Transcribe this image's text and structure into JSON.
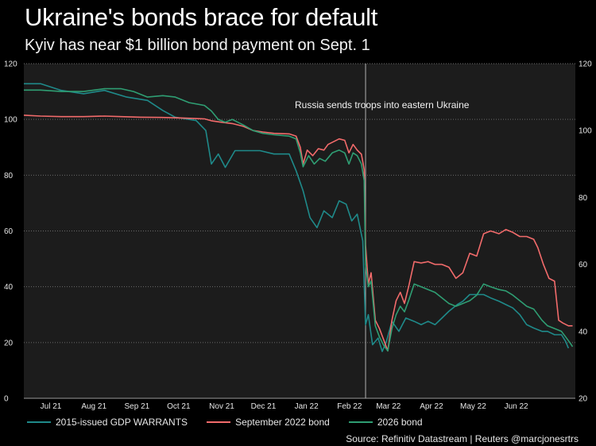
{
  "chart_data": {
    "type": "line",
    "title": "Ukraine's bonds brace for default",
    "subtitle": "Kyiv has near $1 billion bond payment on Sept. 1",
    "source": "Source: Refinitiv Datastream | Reuters @marcjonesrtrs",
    "annotation": "Russia sends troops into eastern Ukraine",
    "annotation_date": "2022-02-24",
    "x_range": [
      "2021-06-23",
      "2022-07-25"
    ],
    "x_ticks": [
      {
        "label": "Jul 21",
        "date": "2021-07-01"
      },
      {
        "label": "Aug 21",
        "date": "2021-08-01"
      },
      {
        "label": "Sep 21",
        "date": "2021-09-01"
      },
      {
        "label": "Oct 21",
        "date": "2021-10-01"
      },
      {
        "label": "Nov 21",
        "date": "2021-11-01"
      },
      {
        "label": "Dec 21",
        "date": "2021-12-01"
      },
      {
        "label": "Jan 22",
        "date": "2022-01-01"
      },
      {
        "label": "Feb 22",
        "date": "2022-02-01"
      },
      {
        "label": "Mar 22",
        "date": "2022-03-01"
      },
      {
        "label": "Apr 22",
        "date": "2022-04-01"
      },
      {
        "label": "May 22",
        "date": "2022-05-01"
      },
      {
        "label": "Jun 22",
        "date": "2022-06-01"
      }
    ],
    "y_left": {
      "range": [
        0,
        120
      ],
      "ticks": [
        0,
        20,
        40,
        60,
        80,
        100,
        120
      ]
    },
    "y_right": {
      "range": [
        20,
        120
      ],
      "ticks": [
        20,
        40,
        60,
        80,
        100,
        120
      ]
    },
    "grid": "horizontal dotted",
    "legend_position": "bottom",
    "series": [
      {
        "name": "2015-issued GDP WARRANTS",
        "axis": "right",
        "color": "#1f8a8a",
        "points": [
          [
            "2021-06-23",
            114
          ],
          [
            "2021-07-05",
            114
          ],
          [
            "2021-07-20",
            112
          ],
          [
            "2021-08-05",
            111
          ],
          [
            "2021-08-20",
            112
          ],
          [
            "2021-09-05",
            110
          ],
          [
            "2021-09-20",
            109
          ],
          [
            "2021-10-01",
            106
          ],
          [
            "2021-10-10",
            104
          ],
          [
            "2021-10-25",
            103
          ],
          [
            "2021-11-01",
            100
          ],
          [
            "2021-11-05",
            90
          ],
          [
            "2021-11-10",
            93
          ],
          [
            "2021-11-15",
            89
          ],
          [
            "2021-11-22",
            94
          ],
          [
            "2021-12-01",
            94
          ],
          [
            "2021-12-10",
            94
          ],
          [
            "2021-12-20",
            93
          ],
          [
            "2021-12-31",
            93
          ],
          [
            "2022-01-05",
            88
          ],
          [
            "2022-01-10",
            82
          ],
          [
            "2022-01-15",
            74
          ],
          [
            "2022-01-20",
            71
          ],
          [
            "2022-01-25",
            76
          ],
          [
            "2022-01-31",
            74
          ],
          [
            "2022-02-05",
            79
          ],
          [
            "2022-02-10",
            78
          ],
          [
            "2022-02-14",
            73
          ],
          [
            "2022-02-18",
            75
          ],
          [
            "2022-02-22",
            67
          ],
          [
            "2022-02-24",
            42
          ],
          [
            "2022-02-26",
            45
          ],
          [
            "2022-03-01",
            36
          ],
          [
            "2022-03-05",
            38
          ],
          [
            "2022-03-08",
            34
          ],
          [
            "2022-03-11",
            37
          ],
          [
            "2022-03-15",
            43
          ],
          [
            "2022-03-20",
            40
          ],
          [
            "2022-03-25",
            44
          ],
          [
            "2022-03-31",
            43
          ],
          [
            "2022-04-05",
            42
          ],
          [
            "2022-04-10",
            43
          ],
          [
            "2022-04-15",
            42
          ],
          [
            "2022-04-20",
            44
          ],
          [
            "2022-04-25",
            46
          ],
          [
            "2022-05-01",
            48
          ],
          [
            "2022-05-05",
            49
          ],
          [
            "2022-05-10",
            51
          ],
          [
            "2022-05-15",
            51
          ],
          [
            "2022-05-20",
            51
          ],
          [
            "2022-05-25",
            50
          ],
          [
            "2022-05-31",
            49
          ],
          [
            "2022-06-05",
            48
          ],
          [
            "2022-06-10",
            47
          ],
          [
            "2022-06-15",
            45
          ],
          [
            "2022-06-20",
            42
          ],
          [
            "2022-06-25",
            41
          ],
          [
            "2022-07-01",
            40
          ],
          [
            "2022-07-05",
            40
          ],
          [
            "2022-07-10",
            39
          ],
          [
            "2022-07-15",
            39
          ],
          [
            "2022-07-18",
            37
          ],
          [
            "2022-07-20",
            35
          ]
        ]
      },
      {
        "name": "September 2022 bond",
        "axis": "left",
        "color": "#f26b6b",
        "points": [
          [
            "2021-06-23",
            101.5
          ],
          [
            "2021-07-05",
            101.2
          ],
          [
            "2021-07-20",
            101.0
          ],
          [
            "2021-08-05",
            101.0
          ],
          [
            "2021-08-20",
            101.2
          ],
          [
            "2021-09-01",
            101.0
          ],
          [
            "2021-09-15",
            100.8
          ],
          [
            "2021-09-30",
            100.7
          ],
          [
            "2021-10-15",
            100.5
          ],
          [
            "2021-10-31",
            100.2
          ],
          [
            "2021-11-05",
            99.5
          ],
          [
            "2021-11-12",
            99
          ],
          [
            "2021-11-20",
            98.5
          ],
          [
            "2021-11-28",
            97.5
          ],
          [
            "2021-12-05",
            96
          ],
          [
            "2021-12-12",
            95.5
          ],
          [
            "2021-12-20",
            95
          ],
          [
            "2021-12-31",
            94.8
          ],
          [
            "2022-01-05",
            94
          ],
          [
            "2022-01-08",
            90
          ],
          [
            "2022-01-10",
            84
          ],
          [
            "2022-01-13",
            89
          ],
          [
            "2022-01-17",
            87
          ],
          [
            "2022-01-21",
            89.5
          ],
          [
            "2022-01-25",
            89
          ],
          [
            "2022-01-28",
            91
          ],
          [
            "2022-02-01",
            92
          ],
          [
            "2022-02-05",
            93
          ],
          [
            "2022-02-09",
            92.5
          ],
          [
            "2022-02-12",
            88
          ],
          [
            "2022-02-15",
            91
          ],
          [
            "2022-02-18",
            89
          ],
          [
            "2022-02-21",
            87.5
          ],
          [
            "2022-02-23",
            82
          ],
          [
            "2022-02-24",
            55
          ],
          [
            "2022-02-26",
            41
          ],
          [
            "2022-02-28",
            45
          ],
          [
            "2022-03-03",
            28
          ],
          [
            "2022-03-06",
            25
          ],
          [
            "2022-03-09",
            21
          ],
          [
            "2022-03-12",
            17
          ],
          [
            "2022-03-15",
            28
          ],
          [
            "2022-03-18",
            35
          ],
          [
            "2022-03-21",
            38
          ],
          [
            "2022-03-24",
            34
          ],
          [
            "2022-03-27",
            40
          ],
          [
            "2022-03-31",
            49
          ],
          [
            "2022-04-05",
            48.5
          ],
          [
            "2022-04-10",
            49
          ],
          [
            "2022-04-15",
            48
          ],
          [
            "2022-04-20",
            48
          ],
          [
            "2022-04-25",
            47
          ],
          [
            "2022-04-30",
            43
          ],
          [
            "2022-05-05",
            45
          ],
          [
            "2022-05-10",
            52
          ],
          [
            "2022-05-15",
            51
          ],
          [
            "2022-05-20",
            59
          ],
          [
            "2022-05-25",
            60
          ],
          [
            "2022-05-31",
            59
          ],
          [
            "2022-06-05",
            60.5
          ],
          [
            "2022-06-10",
            59.5
          ],
          [
            "2022-06-15",
            58
          ],
          [
            "2022-06-20",
            58
          ],
          [
            "2022-06-25",
            57
          ],
          [
            "2022-06-28",
            54
          ],
          [
            "2022-07-02",
            48
          ],
          [
            "2022-07-06",
            43
          ],
          [
            "2022-07-10",
            42
          ],
          [
            "2022-07-13",
            28
          ],
          [
            "2022-07-16",
            27
          ],
          [
            "2022-07-20",
            26
          ],
          [
            "2022-07-23",
            26
          ]
        ]
      },
      {
        "name": "2026 bond",
        "axis": "left",
        "color": "#2f9e73",
        "points": [
          [
            "2021-06-23",
            110.5
          ],
          [
            "2021-07-05",
            110.5
          ],
          [
            "2021-07-20",
            110
          ],
          [
            "2021-08-05",
            110
          ],
          [
            "2021-08-20",
            111
          ],
          [
            "2021-09-01",
            111
          ],
          [
            "2021-09-10",
            110
          ],
          [
            "2021-09-20",
            108
          ],
          [
            "2021-10-01",
            108.5
          ],
          [
            "2021-10-10",
            108
          ],
          [
            "2021-10-20",
            106
          ],
          [
            "2021-10-31",
            105
          ],
          [
            "2021-11-05",
            103
          ],
          [
            "2021-11-10",
            100
          ],
          [
            "2021-11-15",
            99
          ],
          [
            "2021-11-20",
            100
          ],
          [
            "2021-11-28",
            98
          ],
          [
            "2021-12-05",
            96
          ],
          [
            "2021-12-12",
            95
          ],
          [
            "2021-12-20",
            94.5
          ],
          [
            "2021-12-31",
            94
          ],
          [
            "2022-01-05",
            93
          ],
          [
            "2022-01-08",
            88
          ],
          [
            "2022-01-10",
            83
          ],
          [
            "2022-01-14",
            87
          ],
          [
            "2022-01-18",
            84
          ],
          [
            "2022-01-22",
            86
          ],
          [
            "2022-01-26",
            85
          ],
          [
            "2022-01-31",
            88
          ],
          [
            "2022-02-05",
            89
          ],
          [
            "2022-02-09",
            88
          ],
          [
            "2022-02-12",
            84
          ],
          [
            "2022-02-15",
            88
          ],
          [
            "2022-02-18",
            87
          ],
          [
            "2022-02-21",
            84
          ],
          [
            "2022-02-23",
            78
          ],
          [
            "2022-02-24",
            48
          ],
          [
            "2022-02-26",
            40
          ],
          [
            "2022-02-28",
            42
          ],
          [
            "2022-03-03",
            26
          ],
          [
            "2022-03-06",
            22
          ],
          [
            "2022-03-09",
            19
          ],
          [
            "2022-03-12",
            17
          ],
          [
            "2022-03-15",
            25
          ],
          [
            "2022-03-18",
            30
          ],
          [
            "2022-03-21",
            33
          ],
          [
            "2022-03-24",
            31
          ],
          [
            "2022-03-27",
            35
          ],
          [
            "2022-03-31",
            41
          ],
          [
            "2022-04-05",
            40
          ],
          [
            "2022-04-10",
            39
          ],
          [
            "2022-04-15",
            38
          ],
          [
            "2022-04-20",
            36
          ],
          [
            "2022-04-25",
            34
          ],
          [
            "2022-04-30",
            33
          ],
          [
            "2022-05-05",
            34
          ],
          [
            "2022-05-10",
            35
          ],
          [
            "2022-05-15",
            37
          ],
          [
            "2022-05-20",
            41
          ],
          [
            "2022-05-25",
            40
          ],
          [
            "2022-05-31",
            39
          ],
          [
            "2022-06-05",
            38.5
          ],
          [
            "2022-06-10",
            37
          ],
          [
            "2022-06-15",
            35
          ],
          [
            "2022-06-20",
            33
          ],
          [
            "2022-06-25",
            32
          ],
          [
            "2022-07-01",
            28
          ],
          [
            "2022-07-05",
            26
          ],
          [
            "2022-07-10",
            25
          ],
          [
            "2022-07-15",
            24
          ],
          [
            "2022-07-18",
            22
          ],
          [
            "2022-07-21",
            20
          ],
          [
            "2022-07-23",
            18.5
          ]
        ]
      }
    ]
  }
}
